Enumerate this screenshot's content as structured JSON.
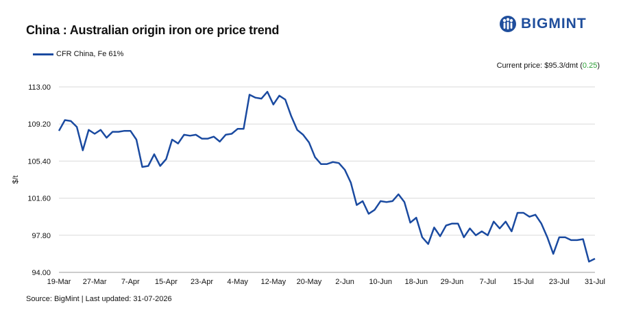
{
  "title": "China : Australian origin iron ore price trend",
  "logo": {
    "text": "BIGMINT"
  },
  "current_price": {
    "label": "Current price: $95.3/dmt (",
    "change": "0.25",
    "suffix": ")"
  },
  "source": "Source: BigMint | Last updated: 31-07-2026",
  "colors": {
    "line": "#1a4aa0",
    "positive": "#2a9d34",
    "grid": "#d9d9d9"
  },
  "chart_data": {
    "type": "line",
    "title": "China : Australian origin iron ore price trend",
    "ylabel": "$/t",
    "xlabel": "",
    "ylim": [
      94.0,
      113.0
    ],
    "yticks": [
      "94.00",
      "97.80",
      "101.60",
      "105.40",
      "109.20",
      "113.00"
    ],
    "xticks": [
      "19-Mar",
      "27-Mar",
      "7-Apr",
      "15-Apr",
      "23-Apr",
      "4-May",
      "12-May",
      "20-May",
      "2-Jun",
      "10-Jun",
      "18-Jun",
      "29-Jun",
      "7-Jul",
      "15-Jul",
      "23-Jul",
      "31-Jul"
    ],
    "legend": "top-left",
    "grid": true,
    "series": [
      {
        "name": "CFR China, Fe 61%",
        "values": [
          108.5,
          109.6,
          109.5,
          108.9,
          106.5,
          108.6,
          108.2,
          108.6,
          107.8,
          108.4,
          108.4,
          108.5,
          108.5,
          107.6,
          104.8,
          104.9,
          106.1,
          104.9,
          105.6,
          107.6,
          107.2,
          108.1,
          108.0,
          108.1,
          107.7,
          107.7,
          107.9,
          107.4,
          108.1,
          108.2,
          108.7,
          108.7,
          112.2,
          111.9,
          111.8,
          112.5,
          111.2,
          112.1,
          111.7,
          110.0,
          108.6,
          108.1,
          107.3,
          105.8,
          105.1,
          105.1,
          105.3,
          105.2,
          104.5,
          103.2,
          100.9,
          101.3,
          100.0,
          100.4,
          101.3,
          101.2,
          101.3,
          102.0,
          101.2,
          99.1,
          99.6,
          97.6,
          96.9,
          98.6,
          97.7,
          98.8,
          99.0,
          99.0,
          97.6,
          98.5,
          97.8,
          98.2,
          97.8,
          99.2,
          98.5,
          99.2,
          98.2,
          100.1,
          100.1,
          99.7,
          99.9,
          99.0,
          97.6,
          95.9,
          97.6,
          97.6,
          97.3,
          97.3,
          97.4,
          95.1,
          95.4
        ]
      }
    ]
  }
}
